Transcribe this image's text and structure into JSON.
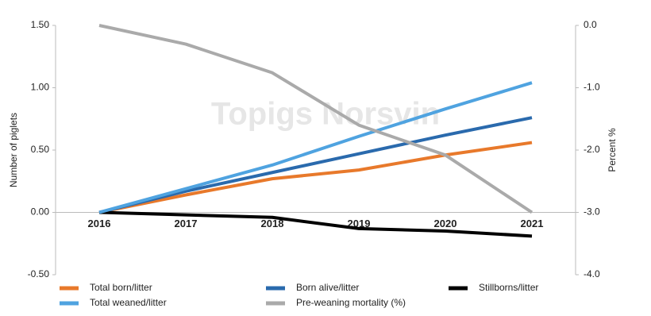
{
  "chart_data": {
    "type": "line",
    "watermark": "Topigs Norsvin",
    "y_label": "Number of piglets",
    "y2_label": "Percent  %",
    "x": [
      "2016",
      "2017",
      "2018",
      "2019",
      "2020",
      "2021"
    ],
    "ylim": [
      -0.5,
      1.5
    ],
    "yticks": [
      {
        "value": -0.5,
        "label": "-0.50"
      },
      {
        "value": 0,
        "label": "0.00"
      },
      {
        "value": 0.5,
        "label": "0.50"
      },
      {
        "value": 1,
        "label": "1.00"
      },
      {
        "value": 1.5,
        "label": "1.50"
      }
    ],
    "y2lim": [
      -4,
      0
    ],
    "y2ticks": [
      {
        "value": -4,
        "label": "-4.0"
      },
      {
        "value": -3,
        "label": "-3.0"
      },
      {
        "value": -2,
        "label": "-2.0"
      },
      {
        "value": -1,
        "label": "-1.0"
      },
      {
        "value": 0,
        "label": "0.0"
      }
    ],
    "series": [
      {
        "name": "Total born/litter",
        "color": "#e8792b",
        "values": [
          0,
          0.14,
          0.27,
          0.34,
          0.46,
          0.56
        ]
      },
      {
        "name": "Born alive/litter",
        "color": "#2a6aad",
        "values": [
          0,
          0.17,
          0.32,
          0.47,
          0.62,
          0.76
        ]
      },
      {
        "name": "Stillborns/litter",
        "color": "#000000",
        "values": [
          0,
          -0.02,
          -0.04,
          -0.13,
          -0.15,
          -0.19
        ]
      },
      {
        "name": "Total weaned/litter",
        "color": "#4fa3e0",
        "values": [
          0,
          0.19,
          0.38,
          0.61,
          0.83,
          1.04
        ]
      },
      {
        "name": "Pre-weaning mortality (%)",
        "color": "#aaaaaa",
        "axis": "y2",
        "values": [
          0,
          -0.3,
          -0.76,
          -1.6,
          -2.08,
          -3.0
        ]
      }
    ]
  }
}
